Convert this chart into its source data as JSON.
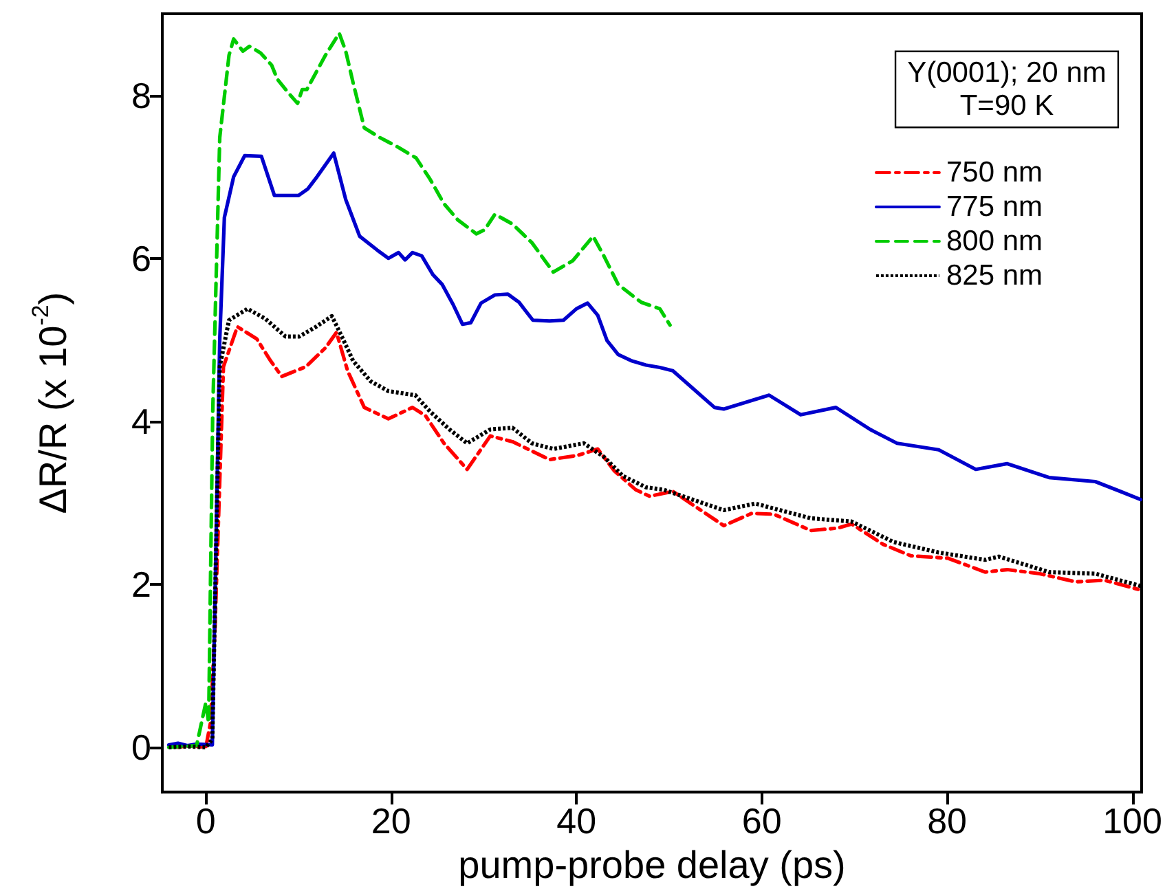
{
  "chart_data": {
    "type": "line",
    "xlabel": "pump-probe delay (ps)",
    "ylabel": "ΔR/R (x 10$^{-2}$)",
    "annotations": [
      "Y(0001); 20 nm\nT=90 K"
    ],
    "xlim": [
      -4.7,
      101
    ],
    "xticks": [
      0,
      20,
      40,
      60,
      80,
      100
    ],
    "ylim": [
      -0.55,
      9
    ],
    "yticks": [
      0,
      2,
      4,
      6,
      8
    ],
    "grid": false,
    "legend": "top right",
    "marker": "none",
    "series": [
      {
        "name": "750 nm",
        "color": "#ff0000",
        "line_style": "dashdot",
        "x": [
          -3,
          -2,
          0,
          0.5,
          1,
          1.9,
          3.4,
          5.5,
          7,
          8.2,
          10.8,
          12.9,
          14.1,
          15.3,
          17.1,
          19.7,
          22.3,
          23.7,
          25.7,
          28.2,
          30.7,
          33.1,
          37.1,
          40.1,
          42.3,
          44.1,
          46.4,
          47.9,
          50.4,
          55.9,
          58.9,
          61.3,
          65.3,
          68.2,
          69.7,
          73.1,
          76.1,
          80.1,
          84.1,
          86.5,
          90,
          93.9,
          97,
          100.9
        ],
        "values": [
          0,
          0.02,
          0,
          0.3,
          1.5,
          4.67,
          5.16,
          5.01,
          4.74,
          4.55,
          4.67,
          4.9,
          5.09,
          4.62,
          4.17,
          4.03,
          4.17,
          4.07,
          3.73,
          3.41,
          3.82,
          3.75,
          3.53,
          3.58,
          3.66,
          3.39,
          3.16,
          3.08,
          3.14,
          2.72,
          2.87,
          2.86,
          2.66,
          2.69,
          2.74,
          2.49,
          2.35,
          2.32,
          2.15,
          2.18,
          2.13,
          2.03,
          2.05,
          1.93
        ]
      },
      {
        "name": "775 nm",
        "color": "#0000cc",
        "line_style": "solid",
        "x": [
          -4,
          -3,
          -2,
          -1,
          0.7,
          1.5,
          2,
          3,
          4.2,
          6,
          7.4,
          10,
          11,
          12,
          13.8,
          15.1,
          16.6,
          18.5,
          19.7,
          20.8,
          21.5,
          22.3,
          23.3,
          24.5,
          25.5,
          26.7,
          27.7,
          28.6,
          29.7,
          31.2,
          32.6,
          33.8,
          35.3,
          37.1,
          38.6,
          40,
          41.2,
          42.3,
          43.3,
          44.5,
          46,
          47.5,
          49,
          50.4,
          54.9,
          55.9,
          60.8,
          64.2,
          68,
          71.7,
          74.6,
          79.1,
          83.1,
          86.5,
          91,
          96,
          98.7,
          100.9
        ],
        "values": [
          0.03,
          0.05,
          0.02,
          0.04,
          0.03,
          5,
          6.5,
          7,
          7.26,
          7.25,
          6.77,
          6.77,
          6.85,
          7,
          7.29,
          6.72,
          6.27,
          6.1,
          6,
          6.07,
          5.98,
          6.07,
          6.03,
          5.8,
          5.68,
          5.43,
          5.19,
          5.21,
          5.45,
          5.55,
          5.56,
          5.46,
          5.24,
          5.23,
          5.24,
          5.38,
          5.45,
          5.3,
          4.99,
          4.82,
          4.74,
          4.69,
          4.66,
          4.62,
          4.17,
          4.15,
          4.32,
          4.08,
          4.17,
          3.9,
          3.73,
          3.65,
          3.41,
          3.48,
          3.31,
          3.26,
          3.14,
          3.04
        ]
      },
      {
        "name": "800 nm",
        "color": "#00cc00",
        "line_style": "dashed",
        "x": [
          -4,
          -1,
          0,
          0.3,
          0.74,
          1.5,
          2.5,
          3,
          4,
          4.7,
          5.9,
          7.1,
          7.7,
          8.9,
          9.9,
          10.4,
          10.9,
          12.9,
          14.4,
          15.1,
          15.9,
          17.1,
          18.8,
          20.8,
          22.7,
          24.2,
          25.7,
          27.2,
          29.2,
          30.1,
          31.2,
          33.1,
          35.2,
          37.5,
          39.6,
          41.8,
          43,
          44.5,
          46.4,
          47,
          49,
          50.1
        ],
        "values": [
          0,
          0.02,
          0.55,
          0.3,
          4.1,
          7.48,
          8.49,
          8.69,
          8.54,
          8.6,
          8.52,
          8.37,
          8.2,
          8.03,
          7.9,
          8.07,
          8.07,
          8.49,
          8.76,
          8.54,
          8.15,
          7.6,
          7.48,
          7.36,
          7.23,
          6.97,
          6.67,
          6.47,
          6.3,
          6.35,
          6.54,
          6.42,
          6.19,
          5.83,
          5.97,
          6.27,
          6.02,
          5.68,
          5.51,
          5.46,
          5.38,
          5.18
        ]
      },
      {
        "name": "825 nm",
        "color": "#000000",
        "line_style": "dotted",
        "x": [
          -4,
          -2,
          0,
          0.7,
          1.5,
          2.5,
          4.5,
          6.4,
          8.6,
          10.1,
          11.9,
          13.6,
          14.8,
          15.9,
          17.8,
          19.7,
          22.6,
          24.2,
          26.3,
          28.2,
          30.7,
          33.1,
          35.2,
          37.5,
          40.8,
          43,
          45,
          47.5,
          49.4,
          55.9,
          59.3,
          65.3,
          69.7,
          74.2,
          79.1,
          84.1,
          85.6,
          91,
          96,
          100.9
        ],
        "values": [
          0,
          0.01,
          0,
          0.1,
          4.67,
          5.24,
          5.38,
          5.26,
          5.04,
          5.04,
          5.16,
          5.29,
          5.01,
          4.74,
          4.49,
          4.37,
          4.32,
          4.12,
          3.9,
          3.73,
          3.9,
          3.92,
          3.73,
          3.66,
          3.73,
          3.56,
          3.33,
          3.19,
          3.16,
          2.91,
          2.99,
          2.81,
          2.77,
          2.52,
          2.39,
          2.3,
          2.34,
          2.15,
          2.13,
          1.98
        ]
      }
    ]
  }
}
